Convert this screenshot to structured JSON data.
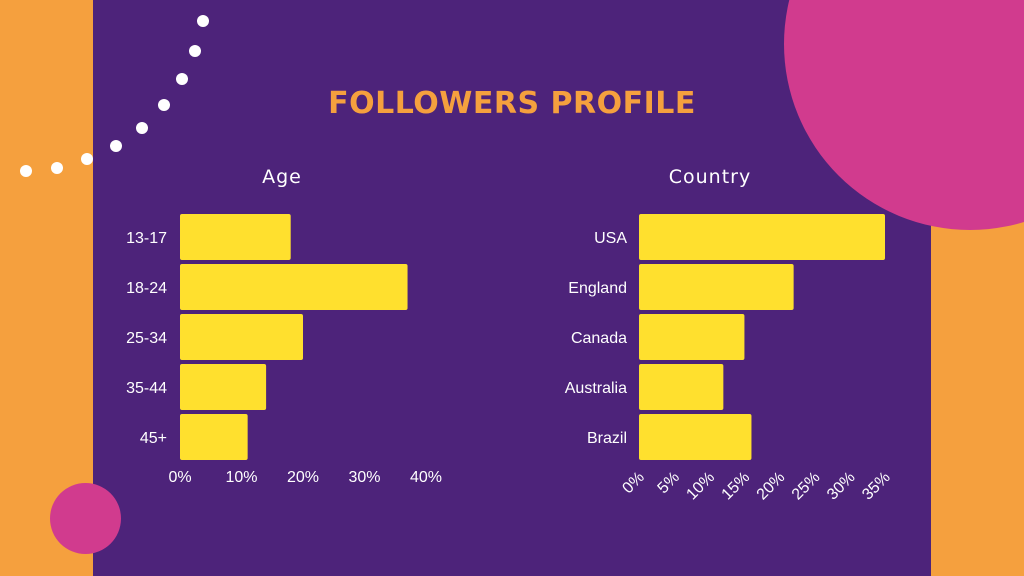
{
  "title": "FOLLOWERS PROFILE",
  "colors": {
    "background": "#f5a03e",
    "panel": "#4d237a",
    "accent": "#d13b8e",
    "bar": "#ffe02e",
    "title": "#f5a03e",
    "text": "#ffffff"
  },
  "chart_data": [
    {
      "type": "bar",
      "orientation": "horizontal",
      "title": "Age",
      "categories": [
        "13-17",
        "18-24",
        "25-34",
        "35-44",
        "45+"
      ],
      "values": [
        18,
        37,
        20,
        14,
        11
      ],
      "xticks": [
        "0%",
        "10%",
        "20%",
        "30%",
        "40%"
      ],
      "xlim": [
        0,
        40
      ],
      "grid": false
    },
    {
      "type": "bar",
      "orientation": "horizontal",
      "title": "Country",
      "categories": [
        "USA",
        "England",
        "Canada",
        "Australia",
        "Brazil"
      ],
      "values": [
        35,
        22,
        15,
        12,
        16
      ],
      "xticks": [
        "0%",
        "5%",
        "10%",
        "15%",
        "20%",
        "25%",
        "30%",
        "35%"
      ],
      "xlim": [
        0,
        35
      ],
      "grid": false
    }
  ]
}
